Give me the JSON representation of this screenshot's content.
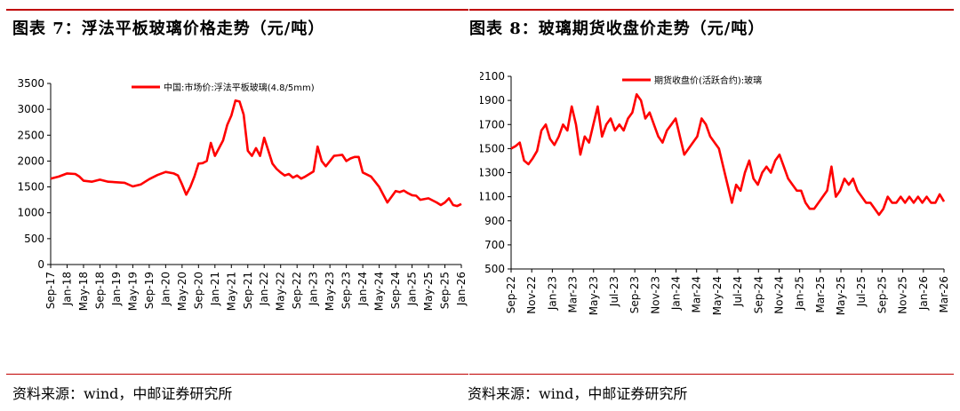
{
  "left": {
    "title": "图表 7：浮法平板玻璃价格走势（元/吨）",
    "source": "资料来源：wind，中邮证券研究所"
  },
  "right": {
    "title": "图表 8：玻璃期货收盘价走势（元/吨）",
    "source": "资料来源：wind，中邮证券研究所"
  },
  "colors": {
    "accent": "#c00000",
    "line": "#ff0000"
  },
  "chart_data": [
    {
      "type": "line",
      "title": "图表 7：浮法平板玻璃价格走势（元/吨）",
      "xlabel": "",
      "ylabel": "",
      "ylim": [
        0,
        3500
      ],
      "yticks": [
        "0",
        "500",
        "1000",
        "1500",
        "2000",
        "2500",
        "3000",
        "3500"
      ],
      "xticks": [
        "Sep-17",
        "Jan-18",
        "May-18",
        "Sep-18",
        "Jan-19",
        "May-19",
        "Sep-19",
        "Jan-20",
        "May-20",
        "Sep-20",
        "Jan-21",
        "May-21",
        "Sep-21",
        "Jan-22",
        "May-22",
        "Sep-22",
        "Jan-23",
        "May-23",
        "Sep-23",
        "Jan-24",
        "May-24",
        "Sep-24",
        "Jan-25",
        "May-25",
        "Sep-25",
        "Jan-26"
      ],
      "legend": "top",
      "series": [
        {
          "name": "中国:市场价:浮法平板玻璃(4.8/5mm)",
          "x": [
            0,
            2,
            4,
            6,
            7,
            8,
            10,
            12,
            14,
            16,
            18,
            20,
            22,
            23,
            24,
            26,
            28,
            30,
            31,
            32,
            33,
            34,
            35,
            36,
            37,
            38,
            39,
            40,
            41,
            42,
            43,
            44,
            45,
            46,
            47,
            48,
            49,
            50,
            51,
            52,
            53,
            54,
            55,
            56,
            57,
            58,
            59,
            60,
            61,
            62,
            63,
            64,
            65,
            66,
            67,
            68,
            69,
            70,
            71,
            72,
            73,
            74,
            75,
            76,
            77,
            78,
            79,
            80,
            82,
            84,
            85,
            86,
            87,
            88,
            89,
            90,
            92,
            94,
            95,
            96,
            97,
            98,
            99,
            100
          ],
          "values": [
            1660,
            1700,
            1760,
            1750,
            1700,
            1620,
            1600,
            1640,
            1600,
            1590,
            1580,
            1510,
            1550,
            1600,
            1650,
            1730,
            1790,
            1760,
            1720,
            1550,
            1350,
            1500,
            1700,
            1950,
            1960,
            2000,
            2350,
            2100,
            2250,
            2400,
            2700,
            2880,
            3170,
            3150,
            2900,
            2200,
            2100,
            2250,
            2100,
            2450,
            2200,
            1950,
            1850,
            1780,
            1720,
            1750,
            1680,
            1720,
            1660,
            1700,
            1750,
            1800,
            2280,
            2000,
            1900,
            2000,
            2100,
            2110,
            2120,
            2000,
            2050,
            2080,
            2080,
            1780,
            1740,
            1700,
            1600,
            1500,
            1200,
            1420,
            1400,
            1430,
            1380,
            1340,
            1330,
            1250,
            1280,
            1200,
            1150,
            1200,
            1280,
            1150,
            1130,
            1170
          ]
        }
      ],
      "xrange": [
        0,
        100
      ]
    },
    {
      "type": "line",
      "title": "图表 8：玻璃期货收盘价走势（元/吨）",
      "xlabel": "",
      "ylabel": "",
      "ylim": [
        500,
        2100
      ],
      "yticks": [
        "500",
        "700",
        "900",
        "1100",
        "1300",
        "1500",
        "1700",
        "1900",
        "2100"
      ],
      "xticks": [
        "Sep-22",
        "Nov-22",
        "Jan-23",
        "Mar-23",
        "May-23",
        "Jul-23",
        "Sep-23",
        "Nov-23",
        "Jan-24",
        "Mar-24",
        "May-24",
        "Jul-24",
        "Sep-24",
        "Nov-24",
        "Jan-25",
        "Mar-25",
        "May-25",
        "Jul-25",
        "Sep-25",
        "Nov-25",
        "Jan-26",
        "Mar-26"
      ],
      "legend": "top",
      "series": [
        {
          "name": "期货收盘价(活跃合约):玻璃",
          "x": [
            0,
            1,
            2,
            3,
            4,
            5,
            6,
            7,
            8,
            9,
            10,
            11,
            12,
            13,
            14,
            15,
            16,
            17,
            18,
            19,
            20,
            21,
            22,
            23,
            24,
            25,
            26,
            27,
            28,
            29,
            30,
            31,
            32,
            33,
            34,
            35,
            36,
            37,
            38,
            39,
            40,
            41,
            42,
            43,
            44,
            45,
            46,
            47,
            48,
            49,
            50,
            51,
            52,
            53,
            54,
            55,
            56,
            57,
            58,
            59,
            60,
            61,
            62,
            63,
            64,
            65,
            66,
            67,
            68,
            69,
            70,
            71,
            72,
            73,
            74,
            75,
            76,
            77,
            78,
            79,
            80,
            81,
            82,
            83,
            84,
            85,
            86,
            87,
            88,
            89,
            90,
            91,
            92,
            93,
            94,
            95,
            96,
            97,
            98,
            99,
            100
          ],
          "values": [
            1500,
            1520,
            1550,
            1400,
            1370,
            1420,
            1480,
            1650,
            1700,
            1580,
            1530,
            1600,
            1700,
            1650,
            1850,
            1700,
            1450,
            1600,
            1550,
            1700,
            1850,
            1600,
            1700,
            1750,
            1650,
            1700,
            1650,
            1750,
            1800,
            1950,
            1900,
            1750,
            1800,
            1700,
            1600,
            1550,
            1650,
            1700,
            1750,
            1600,
            1450,
            1500,
            1550,
            1600,
            1750,
            1700,
            1600,
            1550,
            1500,
            1350,
            1200,
            1050,
            1200,
            1150,
            1300,
            1400,
            1250,
            1200,
            1300,
            1350,
            1300,
            1400,
            1450,
            1350,
            1250,
            1200,
            1150,
            1150,
            1050,
            1000,
            1000,
            1050,
            1100,
            1150,
            1350,
            1100,
            1150,
            1250,
            1200,
            1250,
            1150,
            1100,
            1050,
            1050,
            1000,
            950,
            1000,
            1100,
            1050,
            1050,
            1100,
            1050,
            1100,
            1050,
            1100,
            1050,
            1100,
            1050,
            1050,
            1120,
            1060
          ]
        }
      ],
      "xrange": [
        0,
        100
      ]
    }
  ]
}
